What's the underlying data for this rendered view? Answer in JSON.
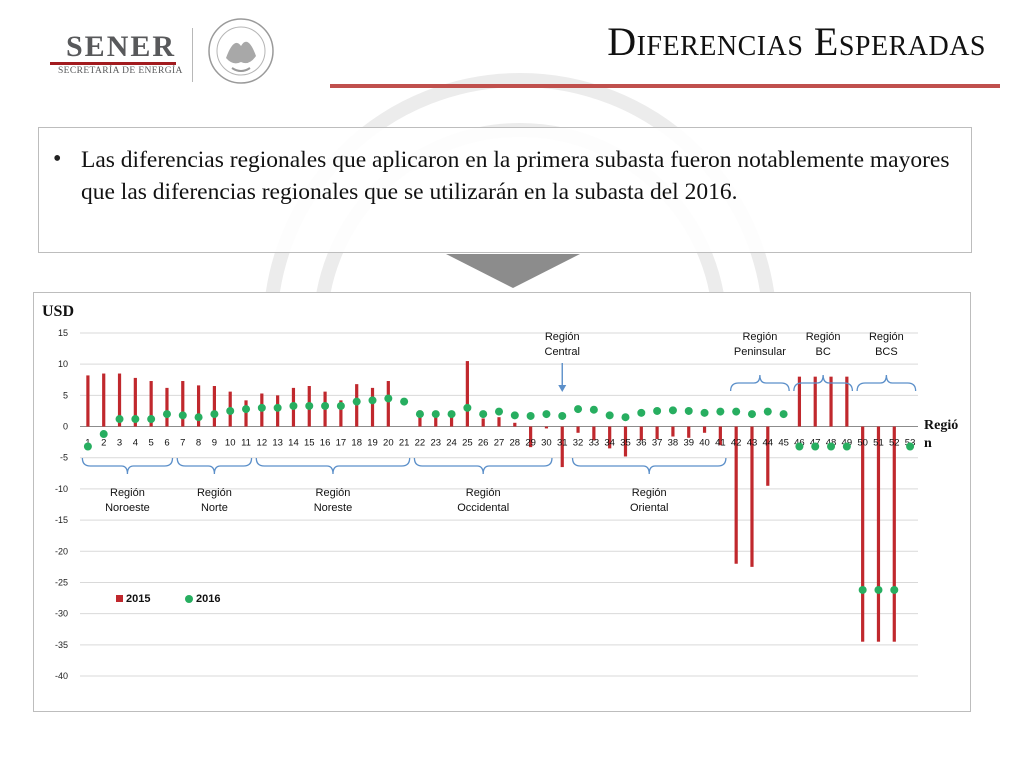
{
  "header": {
    "logo_word": "SENER",
    "logo_subtitle": "SECRETARÍA DE ENERGÍA",
    "title": "Diferencias Esperadas"
  },
  "content": {
    "bullet": "Las diferencias regionales que aplicaron en la primera subasta fueron notablemente mayores que las diferencias regionales que se utilizarán en la subasta del 2016."
  },
  "colors": {
    "series_2015": "#c0282d",
    "series_2016": "#27ae60",
    "accent_rule": "#c0504d",
    "region_brace": "#5b8fc9"
  },
  "icons": {
    "arrow": "chevron-down-icon",
    "seal": "coat-of-arms-icon"
  },
  "chart_data": {
    "type": "bar",
    "title": "",
    "ylabel": "USD",
    "xlabel": "Región",
    "ylim": [
      -40,
      15
    ],
    "yticks": [
      15,
      10,
      5,
      0,
      -5,
      -10,
      -15,
      -20,
      -25,
      -30,
      -35,
      -40
    ],
    "grid": true,
    "legend_position": "bottom-left",
    "categories": [
      "1",
      "2",
      "3",
      "4",
      "5",
      "6",
      "7",
      "8",
      "9",
      "10",
      "11",
      "12",
      "13",
      "14",
      "15",
      "16",
      "17",
      "18",
      "19",
      "20",
      "21",
      "22",
      "23",
      "24",
      "25",
      "26",
      "27",
      "28",
      "29",
      "30",
      "31",
      "32",
      "33",
      "34",
      "35",
      "36",
      "37",
      "38",
      "39",
      "40",
      "41",
      "42",
      "43",
      "44",
      "45",
      "46",
      "47",
      "48",
      "49",
      "50",
      "51",
      "52",
      "53"
    ],
    "series": [
      {
        "name": "2015",
        "mark": "bar",
        "values": [
          8.2,
          8.5,
          8.5,
          7.8,
          7.3,
          6.2,
          7.3,
          6.6,
          6.5,
          5.6,
          4.2,
          5.3,
          5.0,
          6.2,
          6.5,
          5.6,
          4.2,
          6.8,
          6.2,
          7.3,
          0,
          2.6,
          2.0,
          2.2,
          10.5,
          1.3,
          1.5,
          0.6,
          -3.3,
          -0.3,
          -6.5,
          -1.0,
          -2.2,
          -3.5,
          -4.8,
          -2.2,
          -2.0,
          -1.6,
          -1.8,
          -1.0,
          -3.0,
          -22.0,
          -22.5,
          -9.5,
          0,
          8.0,
          8.0,
          8.0,
          8.0,
          -34.5,
          -34.5,
          -34.5,
          0
        ]
      },
      {
        "name": "2016",
        "mark": "point",
        "values": [
          -3.2,
          -1.2,
          1.2,
          1.2,
          1.2,
          2.0,
          1.8,
          1.5,
          2.0,
          2.5,
          2.8,
          3.0,
          3.0,
          3.3,
          3.3,
          3.3,
          3.3,
          4.0,
          4.2,
          4.5,
          4.0,
          2.0,
          2.0,
          2.0,
          3.0,
          2.0,
          2.4,
          1.8,
          1.7,
          2.0,
          1.7,
          2.8,
          2.7,
          1.8,
          1.5,
          2.2,
          2.5,
          2.6,
          2.5,
          2.2,
          2.4,
          2.4,
          2.0,
          2.4,
          2.0,
          -3.2,
          -3.2,
          -3.2,
          -3.2,
          -26.2,
          -26.2,
          -26.2,
          -3.2
        ]
      }
    ],
    "region_annotations": [
      {
        "label_lines": [
          "Región",
          "Noroeste"
        ],
        "from": 1,
        "to": 6,
        "side": "below"
      },
      {
        "label_lines": [
          "Región",
          "Norte"
        ],
        "from": 7,
        "to": 11,
        "side": "below"
      },
      {
        "label_lines": [
          "Región",
          "Noreste"
        ],
        "from": 12,
        "to": 21,
        "side": "below"
      },
      {
        "label_lines": [
          "Región",
          "Occidental"
        ],
        "from": 22,
        "to": 30,
        "side": "below"
      },
      {
        "label_lines": [
          "Región",
          "Oriental"
        ],
        "from": 32,
        "to": 41,
        "side": "below"
      },
      {
        "label_lines": [
          "Región",
          "Central"
        ],
        "from": 31,
        "to": 31,
        "side": "arrow"
      },
      {
        "label_lines": [
          "Región",
          "Peninsular"
        ],
        "from": 42,
        "to": 45,
        "side": "above"
      },
      {
        "label_lines": [
          "Región",
          "BC"
        ],
        "from": 46,
        "to": 49,
        "side": "above"
      },
      {
        "label_lines": [
          "Región",
          "BCS"
        ],
        "from": 50,
        "to": 53,
        "side": "above"
      }
    ]
  }
}
